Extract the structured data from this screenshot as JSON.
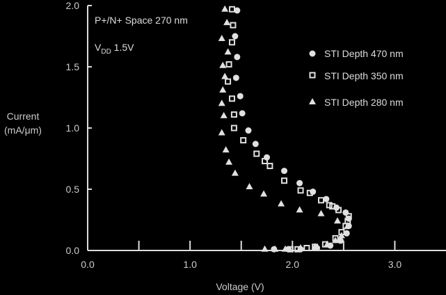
{
  "colors": {
    "background": "#000000",
    "axis": "#dddddd",
    "text": "#cccccc",
    "marker": "#e0e0e0"
  },
  "chart_data": {
    "type": "scatter",
    "xlabel": "Voltage (V)",
    "ylabel_line1": "Current",
    "ylabel_line2": "(mA/μm)",
    "xlim": [
      0.0,
      3.5
    ],
    "ylim": [
      0.0,
      2.0
    ],
    "xticks": [
      0.0,
      1.0,
      2.0,
      3.0
    ],
    "xtick_labels": [
      "0.0",
      "1.0",
      "2.0",
      "3.0"
    ],
    "x_minor_ticks": [
      0.5,
      1.5,
      2.5
    ],
    "yticks": [
      0.0,
      0.5,
      1.0,
      1.5,
      2.0
    ],
    "ytick_labels": [
      "0.0",
      "0.5",
      "1.0",
      "1.5",
      "2.0"
    ],
    "annotations": {
      "line1": "P+/N+ Space 270 nm",
      "line2_main": "V",
      "line2_sub": "DD",
      "line2_rest": " 1.5V"
    },
    "legend_position": "right",
    "series": [
      {
        "name": "STI Depth 470 nm",
        "marker": "circle",
        "points": [
          [
            1.46,
            1.96
          ],
          [
            1.44,
            1.75
          ],
          [
            1.46,
            1.58
          ],
          [
            1.45,
            1.41
          ],
          [
            1.49,
            1.26
          ],
          [
            1.51,
            1.12
          ],
          [
            1.57,
            0.98
          ],
          [
            1.64,
            0.87
          ],
          [
            1.75,
            0.76
          ],
          [
            1.92,
            0.65
          ],
          [
            2.07,
            0.55
          ],
          [
            2.2,
            0.48
          ],
          [
            2.33,
            0.42
          ],
          [
            2.43,
            0.35
          ],
          [
            2.52,
            0.31
          ],
          [
            2.55,
            0.26
          ],
          [
            2.55,
            0.2
          ],
          [
            2.53,
            0.14
          ],
          [
            2.47,
            0.08
          ],
          [
            2.37,
            0.04
          ],
          [
            2.24,
            0.02
          ],
          [
            2.08,
            0.01
          ],
          [
            1.96,
            0.01
          ],
          [
            1.82,
            0.01
          ]
        ]
      },
      {
        "name": "STI Depth 350 nm",
        "marker": "square",
        "points": [
          [
            1.41,
            1.97
          ],
          [
            1.42,
            1.84
          ],
          [
            1.41,
            1.7
          ],
          [
            1.38,
            1.52
          ],
          [
            1.37,
            1.38
          ],
          [
            1.41,
            1.24
          ],
          [
            1.43,
            1.11
          ],
          [
            1.43,
            1.0
          ],
          [
            1.52,
            0.9
          ],
          [
            1.65,
            0.79
          ],
          [
            1.73,
            0.73
          ],
          [
            1.78,
            0.69
          ],
          [
            1.92,
            0.57
          ],
          [
            2.08,
            0.49
          ],
          [
            2.17,
            0.47
          ],
          [
            2.28,
            0.41
          ],
          [
            2.36,
            0.37
          ],
          [
            2.39,
            0.36
          ],
          [
            2.45,
            0.33
          ],
          [
            2.55,
            0.28
          ],
          [
            2.54,
            0.24
          ],
          [
            2.52,
            0.2
          ],
          [
            2.48,
            0.15
          ],
          [
            2.42,
            0.1
          ],
          [
            2.32,
            0.05
          ],
          [
            2.22,
            0.03
          ],
          [
            2.14,
            0.02
          ],
          [
            2.05,
            0.01
          ],
          [
            1.98,
            0.01
          ]
        ]
      },
      {
        "name": "STI Depth 280 nm",
        "marker": "triangle",
        "points": [
          [
            1.34,
            1.97
          ],
          [
            1.36,
            1.86
          ],
          [
            1.31,
            1.73
          ],
          [
            1.37,
            1.62
          ],
          [
            1.32,
            1.51
          ],
          [
            1.34,
            1.42
          ],
          [
            1.32,
            1.31
          ],
          [
            1.31,
            1.2
          ],
          [
            1.33,
            1.1
          ],
          [
            1.31,
            0.96
          ],
          [
            1.35,
            0.82
          ],
          [
            1.38,
            0.72
          ],
          [
            1.44,
            0.63
          ],
          [
            1.58,
            0.52
          ],
          [
            1.72,
            0.46
          ],
          [
            1.89,
            0.38
          ],
          [
            2.07,
            0.33
          ],
          [
            2.28,
            0.3
          ],
          [
            2.44,
            0.24
          ],
          [
            2.54,
            0.2
          ],
          [
            2.48,
            0.12
          ],
          [
            2.42,
            0.08
          ],
          [
            2.34,
            0.05
          ],
          [
            2.22,
            0.03
          ],
          [
            2.08,
            0.02
          ],
          [
            1.93,
            0.01
          ],
          [
            1.83,
            0.01
          ],
          [
            1.73,
            0.01
          ]
        ]
      }
    ]
  }
}
